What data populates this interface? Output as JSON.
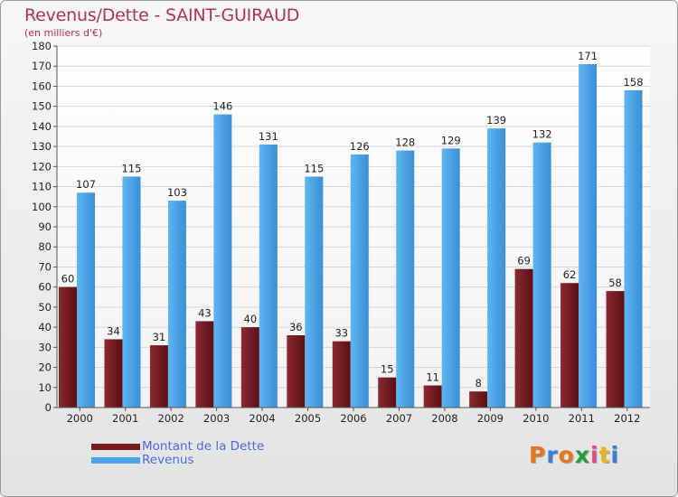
{
  "chart_data": {
    "type": "bar",
    "title": "Revenus/Dette - SAINT-GUIRAUD",
    "subtitle": "(en milliers d'€)",
    "categories": [
      "2000",
      "2001",
      "2002",
      "2003",
      "2004",
      "2005",
      "2006",
      "2007",
      "2008",
      "2009",
      "2010",
      "2011",
      "2012"
    ],
    "series": [
      {
        "name": "Montant de la Dette",
        "color": "#7a1a1f",
        "values": [
          60,
          34,
          31,
          43,
          40,
          36,
          33,
          15,
          11,
          8,
          69,
          62,
          58
        ]
      },
      {
        "name": "Revenus",
        "color": "#4aa3e6",
        "values": [
          107,
          115,
          103,
          146,
          131,
          115,
          126,
          128,
          129,
          139,
          132,
          171,
          158
        ]
      }
    ],
    "ylim": [
      0,
      180
    ],
    "yticks": [
      0,
      10,
      20,
      30,
      40,
      50,
      60,
      70,
      80,
      90,
      100,
      110,
      120,
      130,
      140,
      150,
      160,
      170,
      180
    ],
    "grid": true,
    "legend_position": "bottom-left"
  },
  "logo": {
    "letters": [
      "P",
      "r",
      "o",
      "x",
      "i",
      "t",
      "i"
    ],
    "colors": [
      "#e8741f",
      "#3a7fd0",
      "#e8741f",
      "#2a9a3a",
      "#d94a8a",
      "#e8b51f",
      "#3a7fd0"
    ]
  }
}
